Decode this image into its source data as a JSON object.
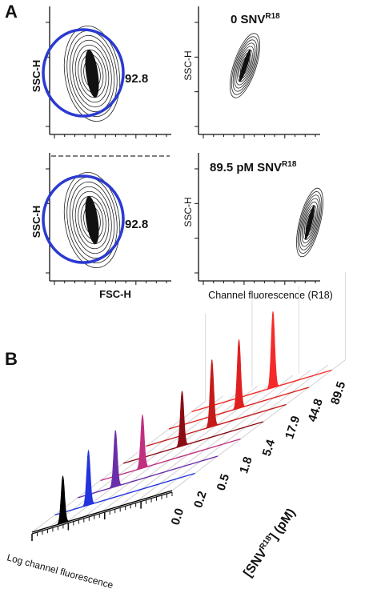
{
  "panel_a": {
    "letter": "A",
    "plots": [
      {
        "ylabel": "SSC-H",
        "xlabel": "",
        "gate_value": "92.8",
        "condition": "",
        "condition_sup": ""
      },
      {
        "ylabel": "SSC-H",
        "xlabel": "",
        "gate_value": "",
        "condition": "0 SNV",
        "condition_sup": "R18"
      },
      {
        "ylabel": "SSC-H",
        "xlabel": "FSC-H",
        "gate_value": "92.8",
        "condition": "",
        "condition_sup": ""
      },
      {
        "ylabel": "SSC-H",
        "xlabel": "Channel fluorescence (R18)",
        "gate_value": "",
        "condition": "89.5 pM SNV",
        "condition_sup": "R18"
      }
    ]
  },
  "panel_b": {
    "letter": "B",
    "x_axis_label": "Log channel fluorescence",
    "z_axis_label_pre": "[SNV",
    "z_axis_label_sup": "R18",
    "z_axis_label_post": "] (pM)"
  },
  "chart_data": [
    {
      "type": "scatter",
      "title": "",
      "xlabel": "",
      "ylabel": "SSC-H",
      "gate_label": "92.8",
      "description_values": {
        "gate_percent": 92.8
      }
    },
    {
      "type": "scatter",
      "title": "0 SNVR18",
      "xlabel": "",
      "ylabel": "SSC-H"
    },
    {
      "type": "scatter",
      "title": "",
      "xlabel": "FSC-H",
      "ylabel": "SSC-H",
      "gate_label": "92.8",
      "description_values": {
        "gate_percent": 92.8
      }
    },
    {
      "type": "scatter",
      "title": "89.5 pM SNVR18",
      "xlabel": "Channel fluorescence (R18)",
      "ylabel": "SSC-H"
    },
    {
      "type": "area",
      "title": "",
      "xlabel": "Log channel fluorescence",
      "zlabel": "[SNVR18] (pM)",
      "series": [
        {
          "name": "0.0",
          "color": "#000000",
          "peak_position": 0.22,
          "peak_height": 0.62
        },
        {
          "name": "0.2",
          "color": "#2233dd",
          "peak_position": 0.24,
          "peak_height": 0.72
        },
        {
          "name": "0.5",
          "color": "#6a2fa8",
          "peak_position": 0.27,
          "peak_height": 0.74
        },
        {
          "name": "1.8",
          "color": "#c03080",
          "peak_position": 0.3,
          "peak_height": 0.7
        },
        {
          "name": "5.4",
          "color": "#8a0d14",
          "peak_position": 0.42,
          "peak_height": 0.72
        },
        {
          "name": "17.9",
          "color": "#c41a1a",
          "peak_position": 0.47,
          "peak_height": 0.88
        },
        {
          "name": "44.8",
          "color": "#e02020",
          "peak_position": 0.5,
          "peak_height": 0.9
        },
        {
          "name": "89.5",
          "color": "#f52a2a",
          "peak_position": 0.58,
          "peak_height": 1.0
        }
      ]
    }
  ]
}
